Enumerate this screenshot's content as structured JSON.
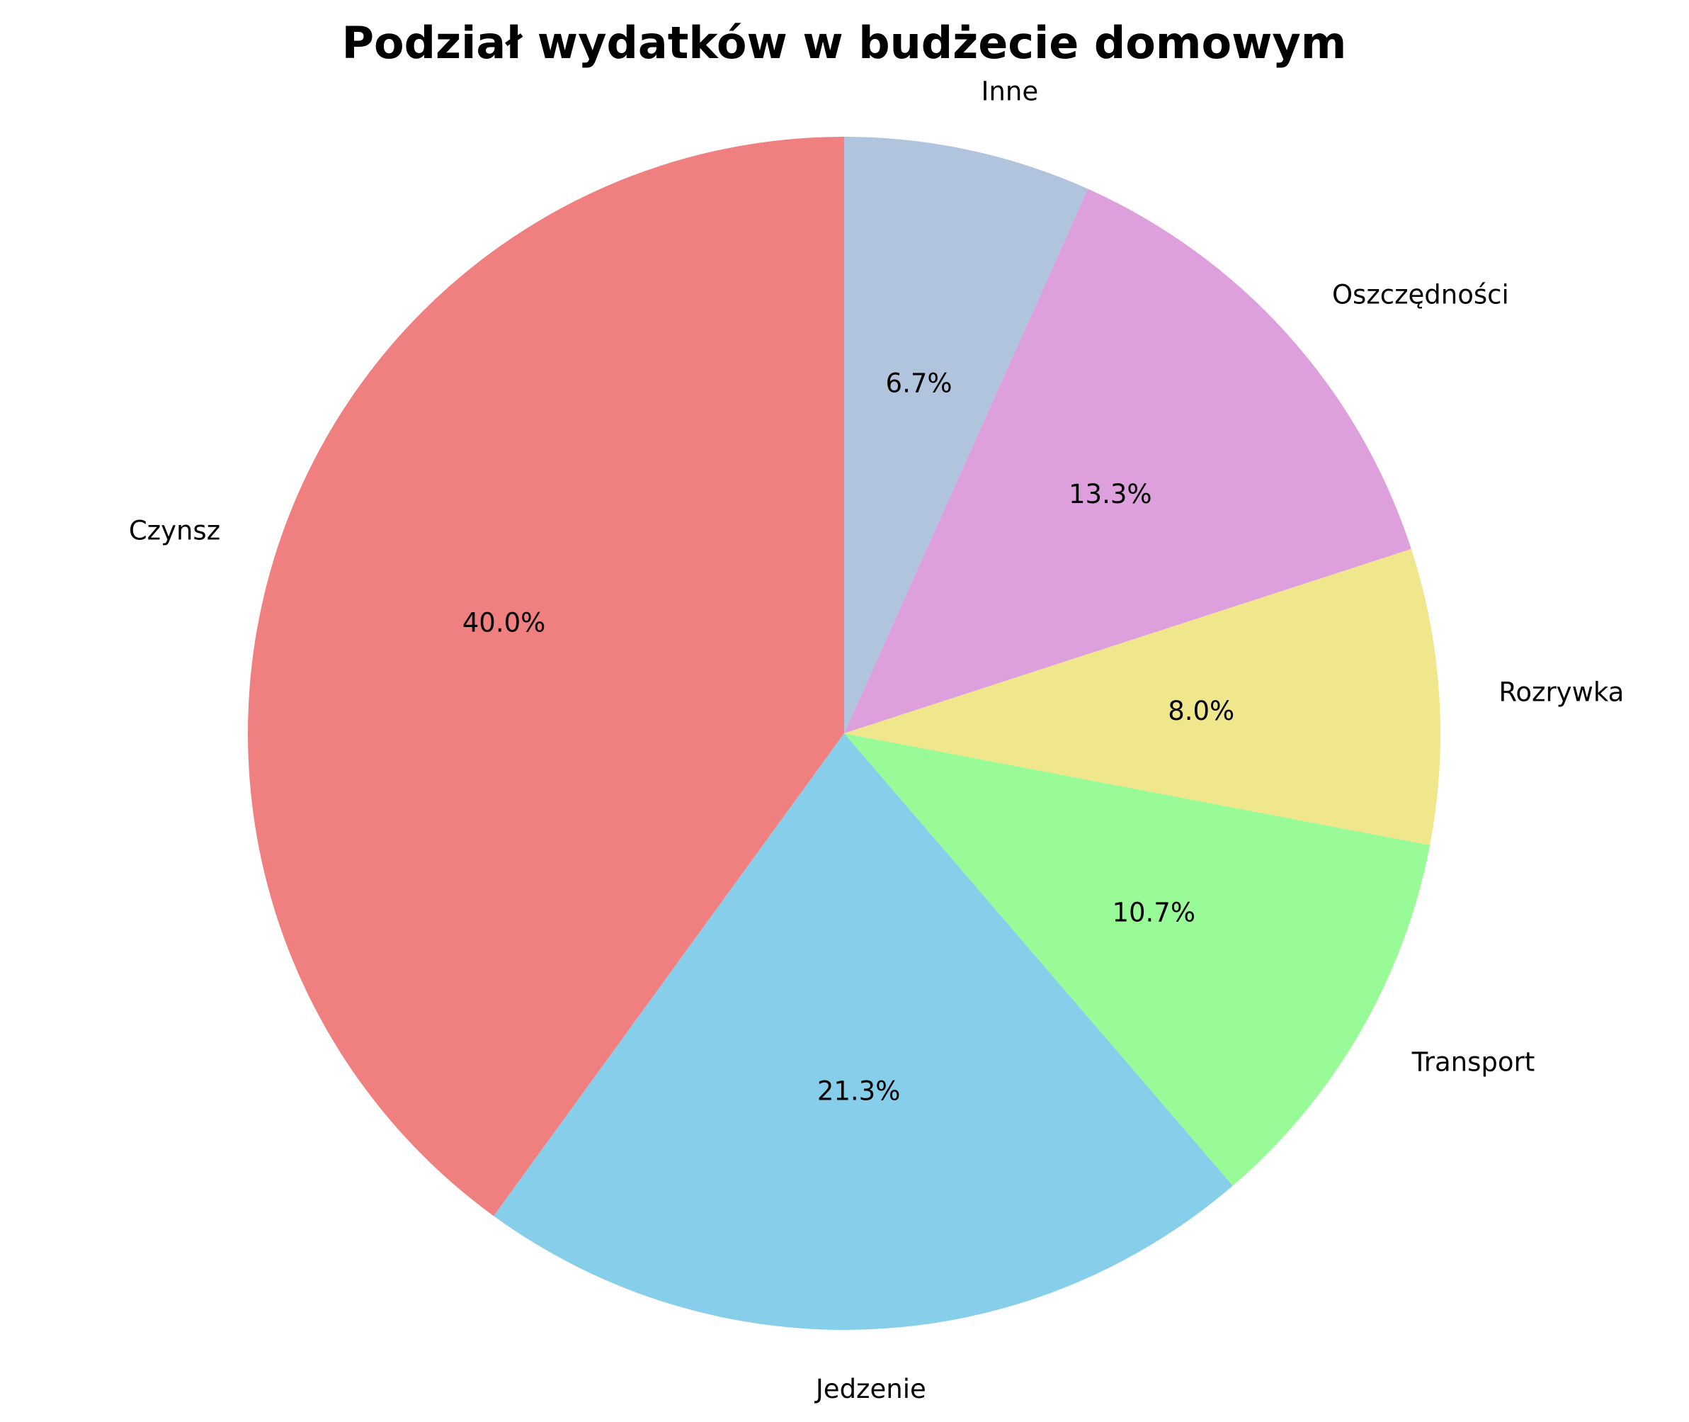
{
  "chart_data": {
    "type": "pie",
    "title": "Podział wydatków w budżecie domowym",
    "start_angle_deg": 90,
    "direction": "counterclockwise",
    "slices": [
      {
        "label": "Czynsz",
        "value": 40.0,
        "pct_label": "40.0%",
        "color": "#F08080"
      },
      {
        "label": "Jedzenie",
        "value": 21.3,
        "pct_label": "21.3%",
        "color": "#87CEEB"
      },
      {
        "label": "Transport",
        "value": 10.7,
        "pct_label": "10.7%",
        "color": "#98FB98"
      },
      {
        "label": "Rozrywka",
        "value": 8.0,
        "pct_label": "8.0%",
        "color": "#F0E68C"
      },
      {
        "label": "Oszczędności",
        "value": 13.3,
        "pct_label": "13.3%",
        "color": "#DDA0DD"
      },
      {
        "label": "Inne",
        "value": 6.7,
        "pct_label": "6.7%",
        "color": "#B0C4DE"
      }
    ]
  }
}
